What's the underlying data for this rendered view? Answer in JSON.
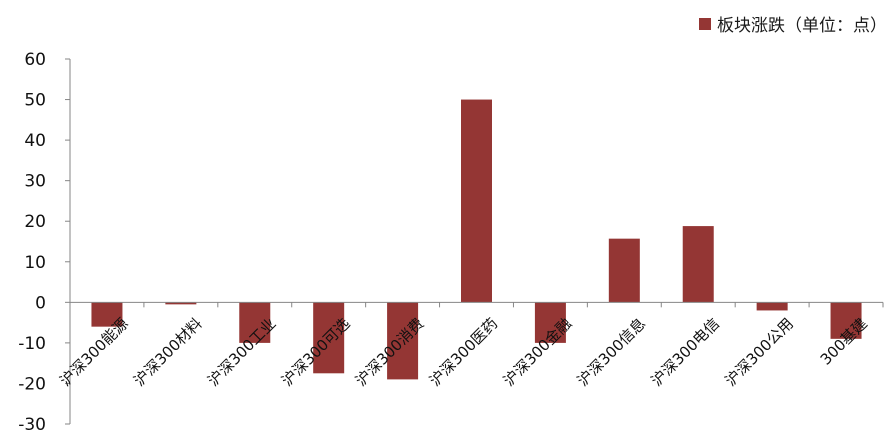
{
  "chart_data": {
    "type": "bar",
    "title": "",
    "xlabel": "",
    "ylabel": "",
    "ylim": [
      -30,
      60
    ],
    "yticks": [
      60,
      50,
      40,
      30,
      20,
      10,
      0,
      -10,
      -20,
      -30
    ],
    "legend_position": "top-right",
    "grid": false,
    "bar_color": "#943634",
    "categories": [
      "沪深300能源",
      "沪深300材料",
      "沪深300工业",
      "沪深300可选",
      "沪深300消费",
      "沪深300医药",
      "沪深300金融",
      "沪深300信息",
      "沪深300电信",
      "沪深300公用",
      "300基建"
    ],
    "series": [
      {
        "name": "板块涨跌（单位：点）",
        "values": [
          -6,
          -0.5,
          -10,
          -17.5,
          -19,
          50,
          -10,
          15.7,
          18.8,
          -2,
          -9
        ]
      }
    ]
  }
}
